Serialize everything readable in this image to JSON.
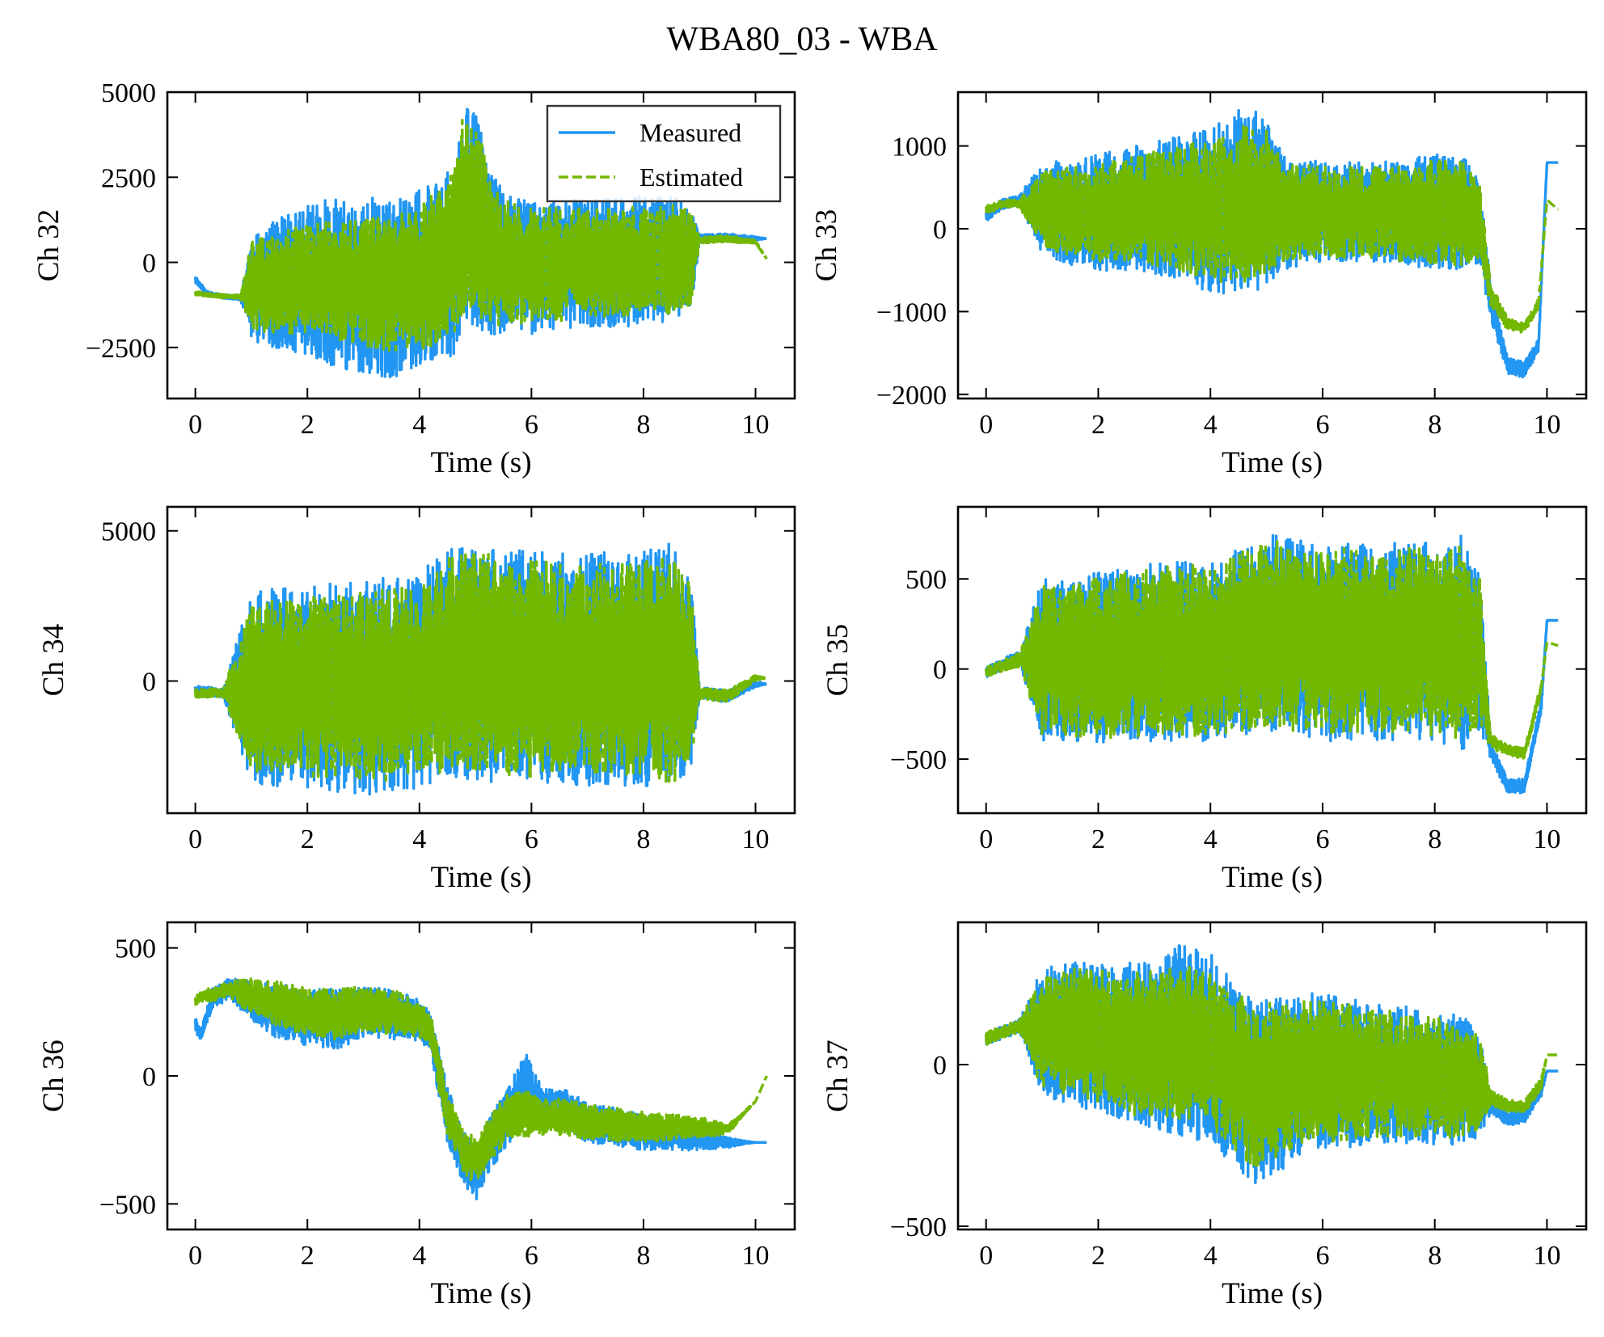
{
  "figure_title": "WBA80_03 - WBA",
  "colors": {
    "measured": "#2196F3",
    "estimated": "#72B800",
    "axes": "#000000"
  },
  "legend": {
    "placement": "upper-right",
    "entries": [
      "Measured",
      "Estimated"
    ]
  },
  "chart_data": [
    {
      "type": "line",
      "ylabel": "Ch 32",
      "xlabel": "Time (s)",
      "xlim": [
        -0.5,
        10.7
      ],
      "ylim": [
        -4000,
        5000
      ],
      "xticks": [
        0,
        2,
        4,
        6,
        8,
        10
      ],
      "yticks": [
        -2500,
        0,
        2500,
        5000
      ],
      "ytick_labels": [
        "−2500",
        "0",
        "2500",
        "5000"
      ],
      "show_legend": true,
      "series": [
        {
          "name": "Measured",
          "style": "solid",
          "x": [
            0,
            0.2,
            0.5,
            0.8,
            1.0,
            1.5,
            2.0,
            2.5,
            3.0,
            3.5,
            4.0,
            4.3,
            4.6,
            4.8,
            5.0,
            5.3,
            5.6,
            6.0,
            6.5,
            7.0,
            7.5,
            8.0,
            8.5,
            8.85,
            9.0,
            9.5,
            10.0,
            10.2
          ],
          "center": [
            -500,
            -900,
            -1000,
            -1050,
            -800,
            -600,
            -500,
            -600,
            -700,
            -700,
            -500,
            -300,
            0,
            1500,
            1300,
            200,
            0,
            -200,
            -100,
            0,
            0,
            50,
            100,
            100,
            700,
            750,
            700,
            700
          ],
          "amp": [
            100,
            60,
            60,
            60,
            1500,
            2000,
            2200,
            2500,
            2600,
            2700,
            2700,
            2600,
            2800,
            3200,
            3200,
            2400,
            2000,
            2000,
            1900,
            1900,
            1900,
            1900,
            1900,
            1500,
            120,
            100,
            60,
            0
          ]
        },
        {
          "name": "Estimated",
          "style": "dashed",
          "x": [
            0,
            0.2,
            0.5,
            0.8,
            1.0,
            1.5,
            2.0,
            2.5,
            3.0,
            3.5,
            4.0,
            4.3,
            4.6,
            4.8,
            5.0,
            5.3,
            5.6,
            6.0,
            6.5,
            7.0,
            7.5,
            8.0,
            8.5,
            8.85,
            9.0,
            9.5,
            10.0,
            10.2
          ],
          "center": [
            -900,
            -950,
            -1000,
            -1000,
            -700,
            -600,
            -500,
            -550,
            -600,
            -600,
            -450,
            -200,
            100,
            1500,
            1300,
            200,
            0,
            -100,
            -50,
            0,
            0,
            50,
            100,
            100,
            650,
            700,
            600,
            100
          ],
          "amp": [
            60,
            60,
            60,
            60,
            1300,
            1500,
            1600,
            1800,
            1900,
            2000,
            2100,
            2300,
            2600,
            3000,
            2900,
            2100,
            1800,
            1700,
            1700,
            1600,
            1600,
            1600,
            1600,
            1400,
            100,
            100,
            60,
            0
          ]
        }
      ]
    },
    {
      "type": "line",
      "ylabel": "Ch 33",
      "xlabel": "Time (s)",
      "xlim": [
        -0.5,
        10.7
      ],
      "ylim": [
        -2050,
        1650
      ],
      "xticks": [
        0,
        2,
        4,
        6,
        8,
        10
      ],
      "yticks": [
        -2000,
        -1000,
        0,
        1000
      ],
      "ytick_labels": [
        "−2000",
        "−1000",
        "0",
        "1000"
      ],
      "show_legend": false,
      "series": [
        {
          "name": "Measured",
          "style": "solid",
          "x": [
            0,
            0.3,
            0.6,
            1.0,
            1.5,
            2.0,
            3.0,
            3.5,
            4.0,
            4.5,
            4.8,
            5.0,
            5.3,
            6.0,
            7.0,
            8.0,
            8.5,
            8.8,
            9.0,
            9.3,
            9.6,
            9.85,
            10.0,
            10.2
          ],
          "center": [
            150,
            300,
            350,
            250,
            200,
            200,
            250,
            250,
            200,
            350,
            350,
            300,
            200,
            200,
            200,
            200,
            200,
            100,
            -900,
            -1650,
            -1700,
            -1400,
            800,
            800
          ],
          "amp": [
            60,
            60,
            60,
            550,
            650,
            700,
            800,
            900,
            1000,
            1100,
            1100,
            1000,
            700,
            600,
            600,
            700,
            700,
            500,
            200,
            100,
            100,
            80,
            0,
            0
          ]
        },
        {
          "name": "Estimated",
          "style": "dashed",
          "x": [
            0,
            0.3,
            0.6,
            1.0,
            1.5,
            2.0,
            3.0,
            3.5,
            4.0,
            4.5,
            4.8,
            5.0,
            5.3,
            6.0,
            7.0,
            8.0,
            8.5,
            8.8,
            9.0,
            9.3,
            9.6,
            9.85,
            10.0,
            10.2
          ],
          "center": [
            230,
            300,
            300,
            250,
            200,
            200,
            250,
            250,
            200,
            300,
            300,
            300,
            200,
            200,
            200,
            200,
            200,
            100,
            -800,
            -1150,
            -1200,
            -900,
            350,
            230
          ],
          "amp": [
            50,
            50,
            50,
            450,
            550,
            600,
            700,
            800,
            850,
            950,
            950,
            900,
            600,
            550,
            550,
            650,
            650,
            450,
            150,
            80,
            60,
            60,
            0,
            0
          ]
        }
      ]
    },
    {
      "type": "line",
      "ylabel": "Ch 34",
      "xlabel": "Time (s)",
      "xlim": [
        -0.5,
        10.7
      ],
      "ylim": [
        -4400,
        5800
      ],
      "xticks": [
        0,
        2,
        4,
        6,
        8,
        10
      ],
      "yticks": [
        0,
        5000
      ],
      "ytick_labels": [
        "0",
        "5000"
      ],
      "show_legend": false,
      "series": [
        {
          "name": "Measured",
          "style": "solid",
          "x": [
            0,
            0.5,
            1.0,
            2.0,
            3.0,
            4.0,
            4.5,
            5.0,
            6.0,
            7.0,
            8.0,
            8.5,
            8.85,
            9.0,
            9.5,
            10.0,
            10.2
          ],
          "center": [
            -300,
            -400,
            -200,
            -200,
            -200,
            0,
            600,
            600,
            400,
            400,
            400,
            400,
            300,
            -400,
            -500,
            -100,
            -100
          ],
          "amp": [
            150,
            150,
            3200,
            3400,
            3600,
            3600,
            3800,
            3900,
            3900,
            3900,
            3900,
            4200,
            3200,
            200,
            200,
            100,
            0
          ]
        },
        {
          "name": "Estimated",
          "style": "dashed",
          "x": [
            0,
            0.5,
            1.0,
            2.0,
            3.0,
            4.0,
            4.5,
            5.0,
            6.0,
            7.0,
            8.0,
            8.5,
            8.85,
            9.0,
            9.5,
            10.0,
            10.2
          ],
          "center": [
            -400,
            -400,
            -200,
            -200,
            -200,
            0,
            600,
            600,
            400,
            400,
            400,
            400,
            300,
            -400,
            -500,
            100,
            100
          ],
          "amp": [
            150,
            150,
            2800,
            3000,
            3200,
            3200,
            3600,
            3700,
            3600,
            3600,
            3600,
            3900,
            3000,
            200,
            200,
            100,
            0
          ]
        }
      ]
    },
    {
      "type": "line",
      "ylabel": "Ch 35",
      "xlabel": "Time (s)",
      "xlim": [
        -0.5,
        10.7
      ],
      "ylim": [
        -800,
        900
      ],
      "xticks": [
        0,
        2,
        4,
        6,
        8,
        10
      ],
      "yticks": [
        -500,
        0,
        500
      ],
      "ytick_labels": [
        "−500",
        "0",
        "500"
      ],
      "show_legend": false,
      "series": [
        {
          "name": "Measured",
          "style": "solid",
          "x": [
            0,
            0.3,
            0.6,
            1.0,
            1.5,
            2.0,
            3.0,
            4.0,
            4.5,
            5.0,
            6.0,
            7.0,
            8.0,
            8.5,
            8.8,
            9.0,
            9.3,
            9.6,
            9.9,
            10.0,
            10.2
          ],
          "center": [
            -20,
            30,
            60,
            50,
            50,
            60,
            100,
            100,
            150,
            200,
            150,
            150,
            150,
            150,
            100,
            -450,
            -650,
            -650,
            -200,
            270,
            270
          ],
          "amp": [
            30,
            30,
            40,
            450,
            450,
            480,
            500,
            500,
            520,
            550,
            550,
            550,
            550,
            600,
            450,
            50,
            40,
            40,
            40,
            0,
            0
          ]
        },
        {
          "name": "Estimated",
          "style": "dashed",
          "x": [
            0,
            0.3,
            0.6,
            1.0,
            1.5,
            2.0,
            3.0,
            4.0,
            4.5,
            5.0,
            6.0,
            7.0,
            8.0,
            8.5,
            8.8,
            9.0,
            9.3,
            9.6,
            9.9,
            10.0,
            10.2
          ],
          "center": [
            -20,
            20,
            50,
            50,
            50,
            60,
            100,
            100,
            150,
            200,
            150,
            150,
            150,
            150,
            100,
            -400,
            -450,
            -470,
            -100,
            150,
            130
          ],
          "amp": [
            30,
            30,
            40,
            420,
            420,
            450,
            470,
            480,
            500,
            520,
            520,
            520,
            520,
            550,
            420,
            40,
            30,
            30,
            30,
            0,
            0
          ]
        }
      ]
    },
    {
      "type": "line",
      "ylabel": "Ch 36",
      "xlabel": "Time (s)",
      "xlim": [
        -0.5,
        10.7
      ],
      "ylim": [
        -600,
        600
      ],
      "xticks": [
        0,
        2,
        4,
        6,
        8,
        10
      ],
      "yticks": [
        -500,
        0,
        500
      ],
      "ytick_labels": [
        "−500",
        "0",
        "500"
      ],
      "show_legend": false,
      "series": [
        {
          "name": "Measured",
          "style": "solid",
          "x": [
            0,
            0.1,
            0.3,
            0.6,
            1.0,
            1.5,
            2.0,
            2.5,
            3.0,
            3.5,
            4.0,
            4.2,
            4.5,
            4.8,
            5.0,
            5.3,
            5.6,
            5.9,
            6.2,
            6.6,
            7.0,
            8.0,
            9.0,
            9.5,
            10.0,
            10.2
          ],
          "center": [
            200,
            160,
            300,
            340,
            300,
            250,
            230,
            220,
            250,
            240,
            220,
            170,
            -150,
            -330,
            -380,
            -250,
            -150,
            -30,
            -130,
            -130,
            -180,
            -220,
            -250,
            -260,
            -260,
            -260
          ],
          "amp": [
            30,
            20,
            40,
            40,
            80,
            110,
            110,
            120,
            100,
            100,
            80,
            80,
            110,
            110,
            110,
            110,
            120,
            120,
            80,
            80,
            80,
            70,
            40,
            20,
            0,
            0
          ]
        },
        {
          "name": "Estimated",
          "style": "dashed",
          "x": [
            0,
            0.1,
            0.3,
            0.6,
            1.0,
            1.5,
            2.0,
            2.5,
            3.0,
            3.5,
            4.0,
            4.2,
            4.5,
            4.8,
            5.0,
            5.3,
            5.6,
            5.9,
            6.2,
            6.6,
            7.0,
            8.0,
            9.0,
            9.5,
            10.0,
            10.2
          ],
          "center": [
            290,
            310,
            320,
            340,
            310,
            280,
            250,
            240,
            260,
            250,
            220,
            180,
            -150,
            -300,
            -330,
            -230,
            -150,
            -150,
            -160,
            -160,
            -180,
            -200,
            -200,
            -210,
            -100,
            0
          ],
          "amp": [
            20,
            20,
            30,
            30,
            70,
            90,
            90,
            100,
            90,
            90,
            70,
            70,
            90,
            90,
            90,
            90,
            90,
            90,
            70,
            70,
            70,
            60,
            40,
            20,
            0,
            0
          ]
        }
      ]
    },
    {
      "type": "line",
      "ylabel": "Ch 37",
      "xlabel": "Time (s)",
      "xlim": [
        -0.5,
        10.7
      ],
      "ylim": [
        -510,
        440
      ],
      "xticks": [
        0,
        2,
        4,
        6,
        8,
        10
      ],
      "yticks": [
        -500,
        0
      ],
      "ytick_labels": [
        "−500",
        "0"
      ],
      "show_legend": false,
      "series": [
        {
          "name": "Measured",
          "style": "solid",
          "x": [
            0,
            0.3,
            0.6,
            1.0,
            1.5,
            2.0,
            3.0,
            3.5,
            4.0,
            4.5,
            4.8,
            5.0,
            5.5,
            6.0,
            7.0,
            8.0,
            8.5,
            8.8,
            9.0,
            9.3,
            9.6,
            9.9,
            10.0,
            10.2
          ],
          "center": [
            80,
            100,
            120,
            100,
            100,
            80,
            60,
            80,
            50,
            -50,
            -100,
            -80,
            -40,
            -20,
            -30,
            -40,
            -50,
            -60,
            -120,
            -170,
            -160,
            -80,
            -20,
            -20
          ],
          "amp": [
            20,
            20,
            20,
            200,
            220,
            230,
            260,
            300,
            300,
            280,
            300,
            280,
            260,
            240,
            220,
            210,
            200,
            160,
            30,
            20,
            20,
            20,
            0,
            0
          ]
        },
        {
          "name": "Estimated",
          "style": "dashed",
          "x": [
            0,
            0.3,
            0.6,
            1.0,
            1.5,
            2.0,
            3.0,
            3.5,
            4.0,
            4.5,
            4.8,
            5.0,
            5.5,
            6.0,
            7.0,
            8.0,
            8.5,
            8.8,
            9.0,
            9.3,
            9.6,
            9.9,
            10.0,
            10.2
          ],
          "center": [
            80,
            100,
            120,
            100,
            100,
            80,
            60,
            70,
            50,
            -30,
            -80,
            -60,
            -30,
            -20,
            -30,
            -40,
            -50,
            -60,
            -100,
            -130,
            -130,
            -60,
            30,
            30
          ],
          "amp": [
            20,
            20,
            20,
            180,
            200,
            210,
            230,
            240,
            240,
            250,
            260,
            250,
            230,
            220,
            200,
            190,
            180,
            150,
            25,
            20,
            20,
            20,
            0,
            0
          ]
        }
      ]
    }
  ]
}
